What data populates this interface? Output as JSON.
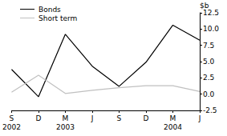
{
  "chart_data": {
    "type": "line",
    "y_label": "$b",
    "categories": [
      "S\n2002",
      "D",
      "M\n2003",
      "J",
      "S",
      "D",
      "M\n2004",
      "J"
    ],
    "series": [
      {
        "name": "Bonds",
        "color": "#000000",
        "values": [
          3.8,
          -0.4,
          9.2,
          4.3,
          1.2,
          4.9,
          10.6,
          8.3
        ]
      },
      {
        "name": "Short term",
        "color": "#c0c0c0",
        "values": [
          0.3,
          2.9,
          0.1,
          0.6,
          1.0,
          1.3,
          1.3,
          0.4
        ]
      }
    ],
    "ylim": [
      -2.5,
      12.5
    ],
    "yticks": [
      -2.5,
      {
        "value": 0,
        "label": "0.0"
      },
      {
        "value": 2.5,
        "label": "2.5"
      },
      {
        "value": 5,
        "label": "5.0"
      },
      {
        "value": 7.5,
        "label": "7.5"
      },
      {
        "value": 10,
        "label": "10.0"
      },
      {
        "value": 12.5,
        "label": "12.5"
      }
    ],
    "grid": false,
    "legend": "top-left"
  }
}
